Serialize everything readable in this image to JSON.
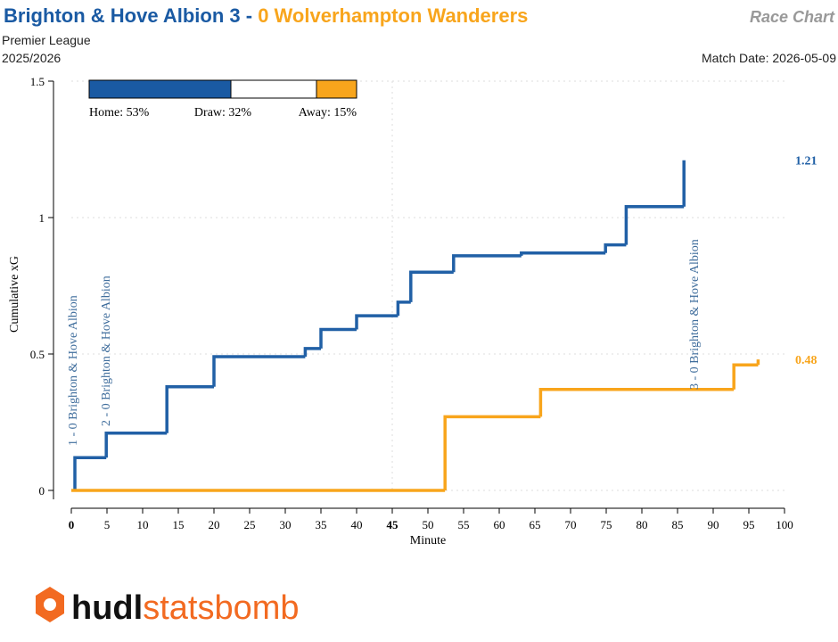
{
  "chart_data": {
    "type": "step",
    "home_title": "Brighton & Hove Albion 3",
    "separator": "-",
    "away_title": "0 Wolverhampton Wanderers",
    "chart_name": "Race Chart",
    "competition": "Premier League",
    "season": "2025/2026",
    "match_date": "Match Date: 2026-05-09",
    "x_label": "Minute",
    "y_label": "Cumulative xG",
    "xlim": [
      0,
      100
    ],
    "xticks": [
      0,
      5,
      10,
      15,
      20,
      25,
      30,
      35,
      40,
      45,
      50,
      55,
      60,
      65,
      70,
      75,
      80,
      85,
      90,
      95,
      100
    ],
    "bold_xticks": [
      0,
      45
    ],
    "ylim": [
      0,
      1.5
    ],
    "yticks": [
      0,
      0.5,
      1,
      1.5
    ],
    "grid": true,
    "series": [
      {
        "name": "Brighton & Hove Albion",
        "color": "#2160a6",
        "x": [
          0.5,
          0.5,
          4.9,
          13.4,
          20,
          32.8,
          35,
          40,
          45.8,
          47.6,
          53.6,
          63.1,
          74.9,
          77.8,
          85.9
        ],
        "y": [
          0,
          0.12,
          0.21,
          0.38,
          0.49,
          0.52,
          0.59,
          0.64,
          0.69,
          0.8,
          0.86,
          0.87,
          0.9,
          1.04,
          1.21
        ]
      },
      {
        "name": "Wolverhampton Wanderers",
        "color": "#f8a51c",
        "x": [
          0,
          52.4,
          65.8,
          92.9,
          96.3
        ],
        "y": [
          0,
          0.27,
          0.37,
          0.46,
          0.48
        ]
      }
    ],
    "annotations": [
      {
        "text": "1 - 0 Brighton & Hove Albion",
        "minute": 0.5
      },
      {
        "text": "2 - 0 Brighton & Hove Albion",
        "minute": 4.9
      },
      {
        "text": "3 - 0 Brighton & Hove Albion",
        "minute": 87
      }
    ],
    "win_probability": {
      "categories": [
        "Home",
        "Draw",
        "Away"
      ],
      "values": [
        53,
        32,
        15
      ],
      "value_labels": [
        "Home: 53%",
        "Draw: 32%",
        "Away: 15%"
      ],
      "colors": [
        "#1a5aa3",
        "#ffffff",
        "#f8a51c"
      ]
    },
    "logo": {
      "hudl": "hudl",
      "statsbomb": "statsbomb"
    }
  }
}
